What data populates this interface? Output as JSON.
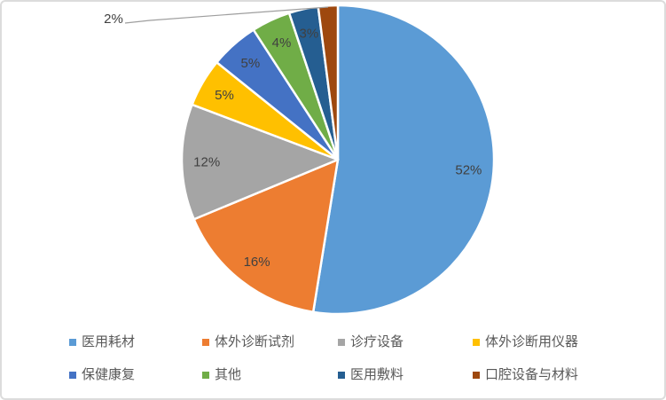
{
  "chart_data": {
    "type": "pie",
    "title": "",
    "categories": [
      "医用耗材",
      "体外诊断试剂",
      "诊疗设备",
      "体外诊断用仪器",
      "保健康复",
      "其他",
      "医用敷料",
      "口腔设备与材料"
    ],
    "values": [
      52,
      16,
      12,
      5,
      5,
      4,
      3,
      2
    ],
    "value_labels": [
      "52%",
      "16%",
      "12%",
      "5%",
      "5%",
      "4%",
      "3%",
      "2%"
    ],
    "colors": [
      "#5B9BD5",
      "#ED7D31",
      "#A5A5A5",
      "#FFC000",
      "#4472C4",
      "#70AD47",
      "#255E91",
      "#9E480E"
    ],
    "label_color": "#404040",
    "slice_border_color": "#FFFFFF",
    "leader_line_color": "#9E9E9E",
    "outside_label": {
      "index": 7,
      "text": "2%"
    },
    "legend": {
      "position": "bottom",
      "rows": 2,
      "columns": 4,
      "text_color": "#595959"
    }
  }
}
